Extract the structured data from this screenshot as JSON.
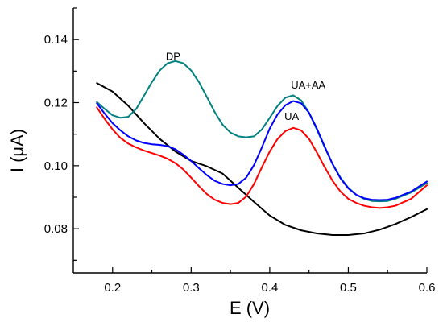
{
  "chart_data": {
    "type": "line",
    "title": "",
    "xlabel": "E (V)",
    "ylabel": "I (μA)",
    "xlim": [
      0.15,
      0.6
    ],
    "ylim": [
      0.066,
      0.15
    ],
    "xticks": [
      0.2,
      0.3,
      0.4,
      0.5,
      0.6
    ],
    "xtick_labels": [
      "0.2",
      "0.3",
      "0.4",
      "0.5",
      "0.6"
    ],
    "yticks": [
      0.08,
      0.1,
      0.12,
      0.14
    ],
    "ytick_labels": [
      "0.08",
      "0.10",
      "0.12",
      "0.14"
    ],
    "grid": false,
    "legend": "none",
    "annotations": [
      {
        "text": "DP",
        "x": 0.277,
        "y": 0.1335
      },
      {
        "text": "UA+AA",
        "x": 0.449,
        "y": 0.1245
      },
      {
        "text": "UA",
        "x": 0.428,
        "y": 0.1145
      }
    ],
    "series": [
      {
        "color": "#000000",
        "points": [
          [
            0.18,
            0.1262
          ],
          [
            0.2,
            0.1235
          ],
          [
            0.22,
            0.119
          ],
          [
            0.24,
            0.1135
          ],
          [
            0.26,
            0.1085
          ],
          [
            0.28,
            0.1045
          ],
          [
            0.3,
            0.1015
          ],
          [
            0.32,
            0.0998
          ],
          [
            0.34,
            0.0975
          ],
          [
            0.36,
            0.093
          ],
          [
            0.38,
            0.0885
          ],
          [
            0.4,
            0.0842
          ],
          [
            0.42,
            0.0812
          ],
          [
            0.44,
            0.0795
          ],
          [
            0.46,
            0.0785
          ],
          [
            0.48,
            0.078
          ],
          [
            0.5,
            0.078
          ],
          [
            0.52,
            0.0785
          ],
          [
            0.54,
            0.0797
          ],
          [
            0.56,
            0.0815
          ],
          [
            0.58,
            0.0837
          ],
          [
            0.6,
            0.0862
          ]
        ]
      },
      {
        "color": "#008080",
        "points": [
          [
            0.18,
            0.1202
          ],
          [
            0.19,
            0.118
          ],
          [
            0.2,
            0.116
          ],
          [
            0.21,
            0.1152
          ],
          [
            0.22,
            0.1155
          ],
          [
            0.23,
            0.118
          ],
          [
            0.24,
            0.1222
          ],
          [
            0.25,
            0.1265
          ],
          [
            0.26,
            0.1302
          ],
          [
            0.27,
            0.1325
          ],
          [
            0.28,
            0.1332
          ],
          [
            0.29,
            0.1325
          ],
          [
            0.3,
            0.1302
          ],
          [
            0.31,
            0.1265
          ],
          [
            0.32,
            0.1218
          ],
          [
            0.33,
            0.117
          ],
          [
            0.34,
            0.113
          ],
          [
            0.35,
            0.1105
          ],
          [
            0.36,
            0.1093
          ],
          [
            0.37,
            0.109
          ],
          [
            0.38,
            0.1093
          ],
          [
            0.39,
            0.1115
          ],
          [
            0.4,
            0.1152
          ],
          [
            0.41,
            0.119
          ],
          [
            0.42,
            0.1216
          ],
          [
            0.43,
            0.1223
          ],
          [
            0.44,
            0.1207
          ],
          [
            0.45,
            0.1168
          ],
          [
            0.46,
            0.1115
          ],
          [
            0.47,
            0.1058
          ],
          [
            0.48,
            0.1005
          ],
          [
            0.49,
            0.0962
          ],
          [
            0.5,
            0.093
          ],
          [
            0.51,
            0.0908
          ],
          [
            0.52,
            0.0895
          ],
          [
            0.53,
            0.0888
          ],
          [
            0.54,
            0.0887
          ],
          [
            0.55,
            0.0888
          ],
          [
            0.56,
            0.0895
          ],
          [
            0.58,
            0.0915
          ],
          [
            0.6,
            0.0945
          ]
        ]
      },
      {
        "color": "#0000ff",
        "points": [
          [
            0.18,
            0.1198
          ],
          [
            0.19,
            0.1165
          ],
          [
            0.2,
            0.1135
          ],
          [
            0.21,
            0.1112
          ],
          [
            0.22,
            0.1093
          ],
          [
            0.23,
            0.108
          ],
          [
            0.24,
            0.1072
          ],
          [
            0.25,
            0.1068
          ],
          [
            0.26,
            0.1066
          ],
          [
            0.27,
            0.1062
          ],
          [
            0.28,
            0.1052
          ],
          [
            0.29,
            0.1035
          ],
          [
            0.3,
            0.1015
          ],
          [
            0.31,
            0.0992
          ],
          [
            0.32,
            0.097
          ],
          [
            0.33,
            0.0952
          ],
          [
            0.34,
            0.0942
          ],
          [
            0.35,
            0.0938
          ],
          [
            0.36,
            0.0942
          ],
          [
            0.37,
            0.0962
          ],
          [
            0.38,
            0.1002
          ],
          [
            0.39,
            0.1058
          ],
          [
            0.4,
            0.1118
          ],
          [
            0.41,
            0.1163
          ],
          [
            0.42,
            0.1192
          ],
          [
            0.43,
            0.1205
          ],
          [
            0.44,
            0.1198
          ],
          [
            0.45,
            0.1168
          ],
          [
            0.46,
            0.1118
          ],
          [
            0.47,
            0.106
          ],
          [
            0.48,
            0.1005
          ],
          [
            0.49,
            0.096
          ],
          [
            0.5,
            0.0928
          ],
          [
            0.51,
            0.0908
          ],
          [
            0.52,
            0.0897
          ],
          [
            0.53,
            0.0892
          ],
          [
            0.54,
            0.0891
          ],
          [
            0.55,
            0.0892
          ],
          [
            0.56,
            0.0898
          ],
          [
            0.58,
            0.0918
          ],
          [
            0.6,
            0.095
          ]
        ]
      },
      {
        "color": "#ff0000",
        "points": [
          [
            0.18,
            0.1185
          ],
          [
            0.19,
            0.1148
          ],
          [
            0.2,
            0.1115
          ],
          [
            0.21,
            0.1088
          ],
          [
            0.22,
            0.107
          ],
          [
            0.23,
            0.1058
          ],
          [
            0.24,
            0.1048
          ],
          [
            0.25,
            0.104
          ],
          [
            0.26,
            0.1032
          ],
          [
            0.27,
            0.1022
          ],
          [
            0.28,
            0.1008
          ],
          [
            0.29,
            0.0988
          ],
          [
            0.3,
            0.0962
          ],
          [
            0.31,
            0.0935
          ],
          [
            0.32,
            0.091
          ],
          [
            0.33,
            0.0892
          ],
          [
            0.34,
            0.0882
          ],
          [
            0.35,
            0.0878
          ],
          [
            0.36,
            0.0882
          ],
          [
            0.37,
            0.0902
          ],
          [
            0.38,
            0.0942
          ],
          [
            0.39,
            0.0995
          ],
          [
            0.4,
            0.1045
          ],
          [
            0.41,
            0.1085
          ],
          [
            0.42,
            0.111
          ],
          [
            0.43,
            0.112
          ],
          [
            0.44,
            0.1112
          ],
          [
            0.45,
            0.1085
          ],
          [
            0.46,
            0.1042
          ],
          [
            0.47,
            0.0995
          ],
          [
            0.48,
            0.0952
          ],
          [
            0.49,
            0.0918
          ],
          [
            0.5,
            0.0895
          ],
          [
            0.51,
            0.0882
          ],
          [
            0.52,
            0.0873
          ],
          [
            0.53,
            0.0868
          ],
          [
            0.54,
            0.0866
          ],
          [
            0.55,
            0.0868
          ],
          [
            0.56,
            0.0873
          ],
          [
            0.58,
            0.0895
          ],
          [
            0.6,
            0.0938
          ]
        ]
      }
    ]
  }
}
